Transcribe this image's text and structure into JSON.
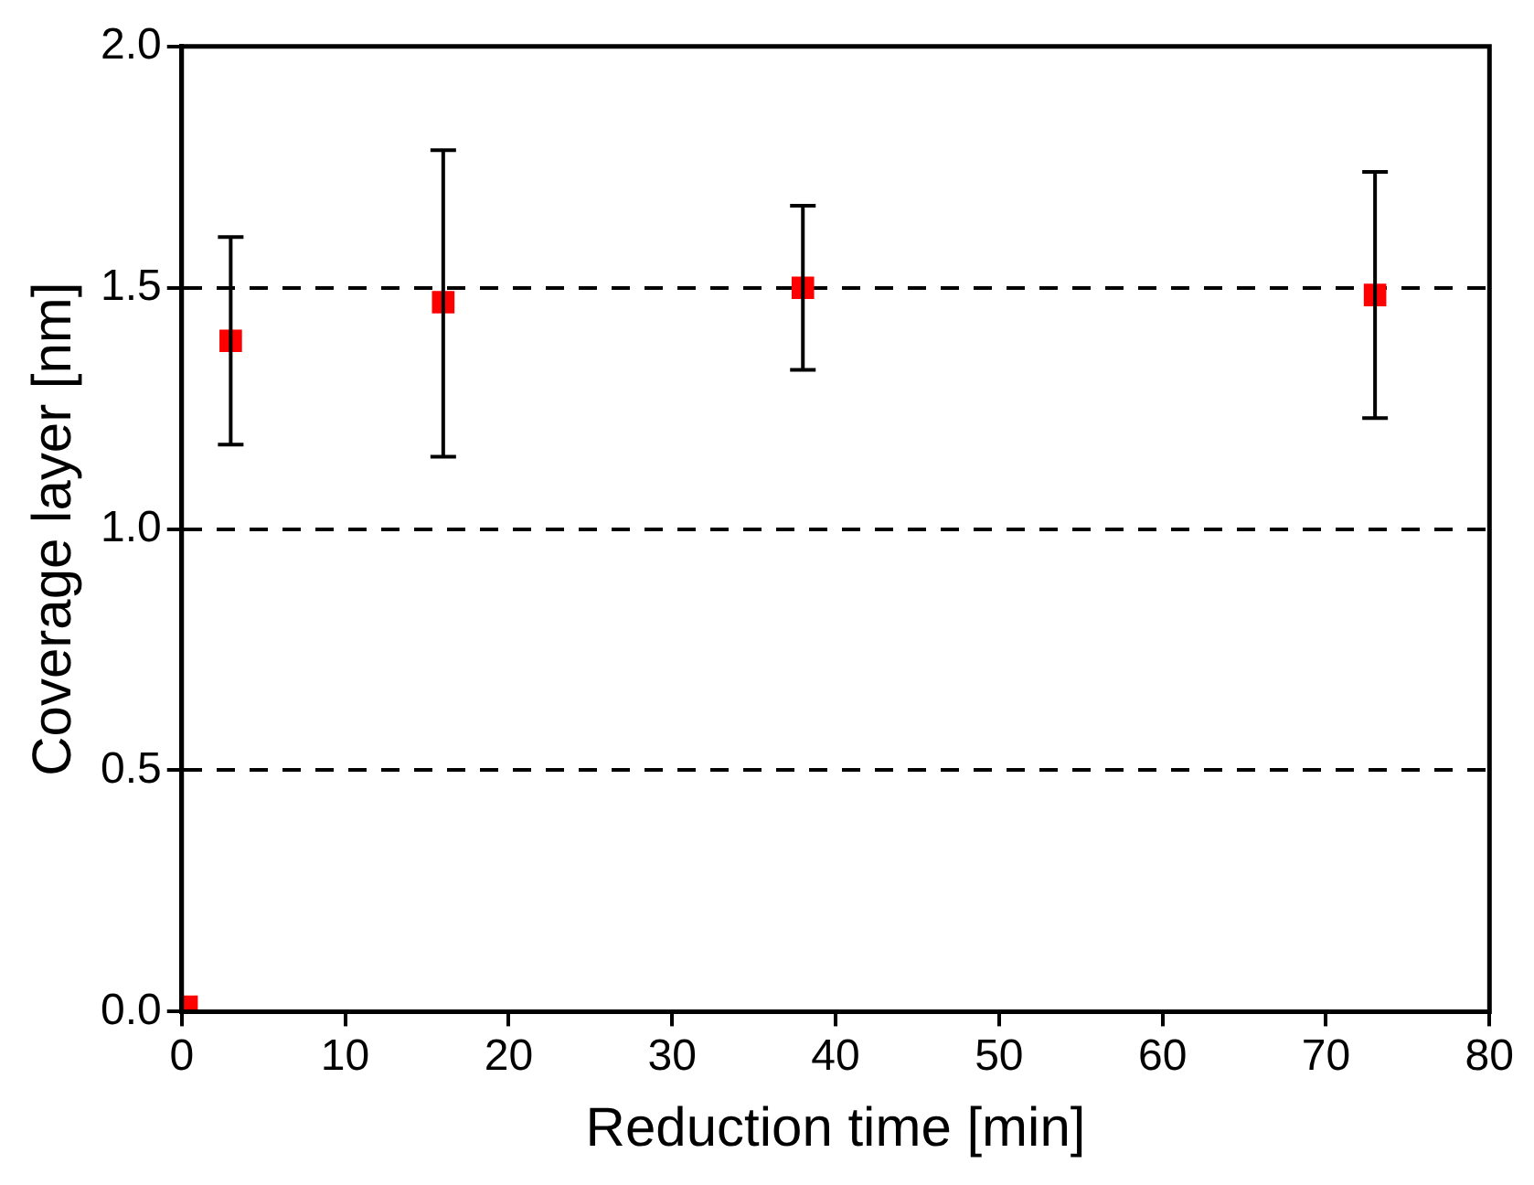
{
  "chart_data": {
    "type": "scatter",
    "xlabel": "Reduction time [min]",
    "ylabel": "Coverage layer [nm]",
    "x": [
      0.3,
      3,
      16,
      38,
      73
    ],
    "series": [
      {
        "color": "#ff0000",
        "values": [
          0.01,
          1.39,
          1.47,
          1.5,
          1.485
        ],
        "errors": [
          null,
          [
            1.175,
            1.605
          ],
          [
            1.15,
            1.785
          ],
          [
            1.33,
            1.67
          ],
          [
            1.23,
            1.74
          ]
        ]
      }
    ],
    "xlim": [
      0,
      80
    ],
    "xticks": [
      0,
      10,
      20,
      30,
      40,
      50,
      60,
      70,
      80
    ],
    "ylim": [
      0,
      2
    ],
    "yticks": [
      {
        "value": 0,
        "label": "0.0"
      },
      {
        "value": 0.5,
        "label": "0.5"
      },
      {
        "value": 1,
        "label": "1.0"
      },
      {
        "value": 1.5,
        "label": "1.5"
      },
      {
        "value": 2,
        "label": "2.0"
      }
    ],
    "grid": "y",
    "line_style": "dashed",
    "marker": "square",
    "legend": false
  }
}
